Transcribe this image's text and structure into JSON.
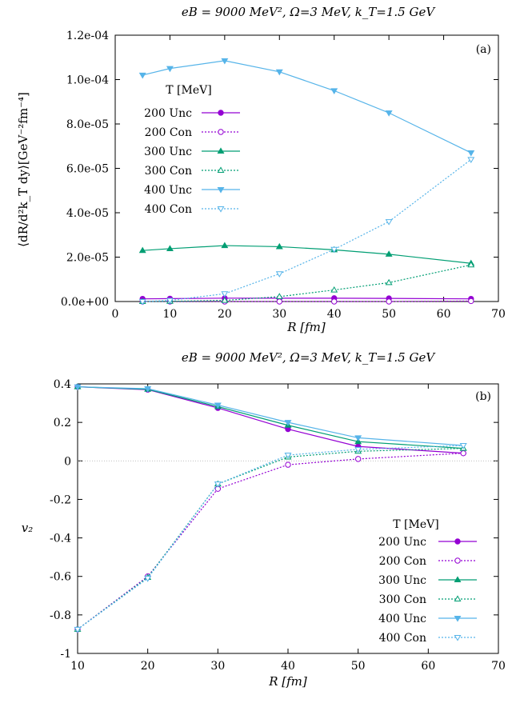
{
  "chart_data": [
    {
      "type": "line",
      "title": "eB = 9000 MeV², Ω=3 MeV, k_T=1.5 GeV",
      "panel_label": "(a)",
      "xlabel": "R [fm]",
      "ylabel": "⟨dR/d²k_T dy⟩[GeV⁻²fm⁻⁴]",
      "xlim": [
        0,
        70
      ],
      "ylim": [
        0,
        0.00012
      ],
      "x_ticks": [
        "0",
        "10",
        "20",
        "30",
        "40",
        "50",
        "60",
        "70"
      ],
      "y_ticks": [
        "0.0e+00",
        "2.0e-05",
        "4.0e-05",
        "6.0e-05",
        "8.0e-05",
        "1.0e-04",
        "1.2e-04"
      ],
      "legend_title": "T [MeV]",
      "legend_position": "left",
      "x": [
        5,
        10,
        20,
        30,
        40,
        50,
        65
      ],
      "series": [
        {
          "name": "200 Unc",
          "color": "#9400d3",
          "marker": "circle-filled",
          "dash": "solid",
          "values": [
            1.2e-06,
            1.3e-06,
            1.5e-06,
            1.5e-06,
            1.5e-06,
            1.4e-06,
            1.2e-06
          ]
        },
        {
          "name": "200 Con",
          "color": "#9400d3",
          "marker": "circle-open",
          "dash": "dotted",
          "values": [
            0.0,
            0.0,
            0.0,
            0.0,
            0.0,
            0.0,
            2e-07
          ]
        },
        {
          "name": "300 Unc",
          "color": "#009e73",
          "marker": "triangle-up-filled",
          "dash": "solid",
          "values": [
            2.3e-05,
            2.38e-05,
            2.52e-05,
            2.47e-05,
            2.33e-05,
            2.13e-05,
            1.72e-05
          ]
        },
        {
          "name": "300 Con",
          "color": "#009e73",
          "marker": "triangle-up-open",
          "dash": "dotted",
          "values": [
            0.0,
            1e-07,
            5e-07,
            2.2e-06,
            5.2e-06,
            8.5e-06,
            1.65e-05
          ]
        },
        {
          "name": "400 Unc",
          "color": "#56b4e9",
          "marker": "triangle-down-filled",
          "dash": "solid",
          "values": [
            0.000102,
            0.000105,
            0.0001085,
            0.0001035,
            9.5e-05,
            8.5e-05,
            6.7e-05
          ]
        },
        {
          "name": "400 Con",
          "color": "#56b4e9",
          "marker": "triangle-down-open",
          "dash": "dotted",
          "values": [
            0.0,
            5e-07,
            3.5e-06,
            1.25e-05,
            2.35e-05,
            3.6e-05,
            6.4e-05
          ]
        }
      ]
    },
    {
      "type": "line",
      "title": "eB = 9000 MeV², Ω=3 MeV, k_T=1.5 GeV",
      "panel_label": "(b)",
      "xlabel": "R [fm]",
      "ylabel": "v₂",
      "xlim": [
        10,
        70
      ],
      "ylim": [
        -1,
        0.4
      ],
      "x_ticks": [
        "10",
        "20",
        "30",
        "40",
        "50",
        "60",
        "70"
      ],
      "y_ticks": [
        "-1",
        "-0.8",
        "-0.6",
        "-0.4",
        "-0.2",
        "0",
        "0.2",
        "0.4"
      ],
      "zero_line": true,
      "legend_title": "T [MeV]",
      "legend_position": "bottom-right",
      "x": [
        10,
        20,
        30,
        40,
        50,
        65
      ],
      "series": [
        {
          "name": "200 Unc",
          "color": "#9400d3",
          "marker": "circle-filled",
          "dash": "solid",
          "values": [
            0.385,
            0.37,
            0.275,
            0.165,
            0.075,
            0.04
          ]
        },
        {
          "name": "200 Con",
          "color": "#9400d3",
          "marker": "circle-open",
          "dash": "dotted",
          "values": [
            -0.875,
            -0.6,
            -0.145,
            -0.02,
            0.01,
            0.04
          ]
        },
        {
          "name": "300 Unc",
          "color": "#009e73",
          "marker": "triangle-up-filled",
          "dash": "solid",
          "values": [
            0.385,
            0.372,
            0.282,
            0.185,
            0.1,
            0.065
          ]
        },
        {
          "name": "300 Con",
          "color": "#009e73",
          "marker": "triangle-up-open",
          "dash": "dotted",
          "values": [
            -0.875,
            -0.605,
            -0.12,
            0.02,
            0.05,
            0.065
          ]
        },
        {
          "name": "400 Unc",
          "color": "#56b4e9",
          "marker": "triangle-down-filled",
          "dash": "solid",
          "values": [
            0.385,
            0.375,
            0.29,
            0.2,
            0.12,
            0.08
          ]
        },
        {
          "name": "400 Con",
          "color": "#56b4e9",
          "marker": "triangle-down-open",
          "dash": "dotted",
          "values": [
            -0.875,
            -0.61,
            -0.12,
            0.03,
            0.06,
            0.08
          ]
        }
      ]
    }
  ]
}
